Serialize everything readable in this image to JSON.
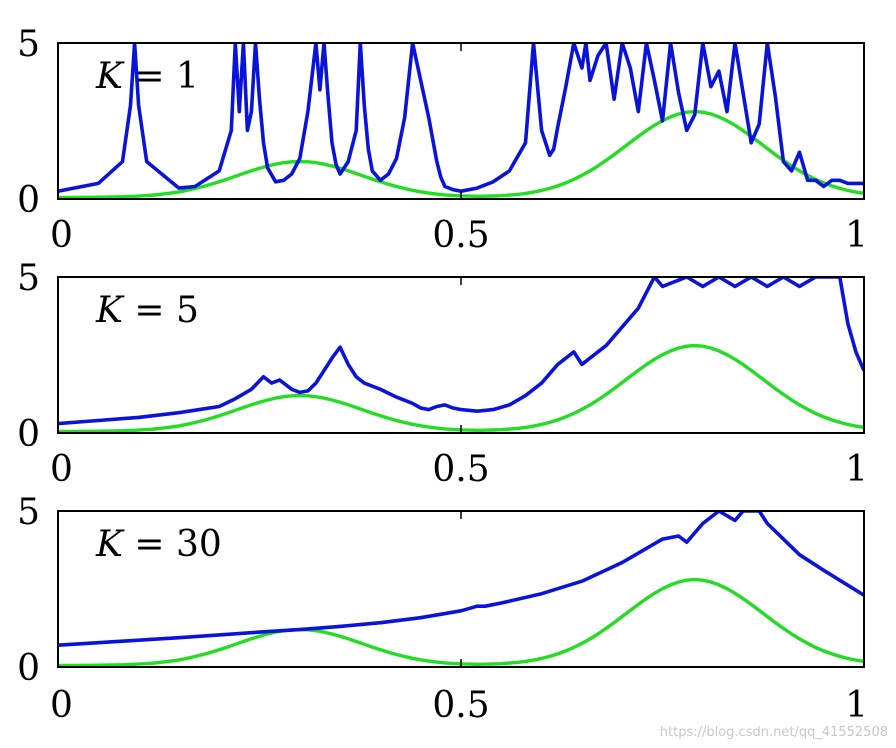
{
  "watermark": "https://blog.csdn.net/qq_41552508",
  "colors": {
    "estimate": "#0a14d8",
    "true_psd": "#22dd22",
    "axes": "#000000"
  },
  "chart_data": [
    {
      "type": "line",
      "label_var": "K",
      "label_rest": " = 1",
      "xlim": [
        0,
        1
      ],
      "ylim": [
        0,
        5
      ],
      "xticks": [
        "0",
        "0.5",
        "1"
      ],
      "yticks": [
        "0",
        "5"
      ],
      "grid": false,
      "series": [
        {
          "key": "estimate",
          "x": [
            0,
            0.05,
            0.08,
            0.09,
            0.095,
            0.1,
            0.11,
            0.15,
            0.17,
            0.2,
            0.215,
            0.22,
            0.225,
            0.23,
            0.235,
            0.24,
            0.245,
            0.25,
            0.255,
            0.26,
            0.27,
            0.28,
            0.29,
            0.3,
            0.31,
            0.32,
            0.325,
            0.33,
            0.335,
            0.34,
            0.345,
            0.35,
            0.36,
            0.37,
            0.375,
            0.38,
            0.385,
            0.39,
            0.4,
            0.41,
            0.42,
            0.43,
            0.44,
            0.46,
            0.47,
            0.475,
            0.48,
            0.49,
            0.5,
            0.52,
            0.54,
            0.56,
            0.58,
            0.59,
            0.6,
            0.61,
            0.615,
            0.62,
            0.63,
            0.64,
            0.65,
            0.655,
            0.66,
            0.67,
            0.68,
            0.69,
            0.7,
            0.71,
            0.72,
            0.73,
            0.74,
            0.75,
            0.76,
            0.77,
            0.78,
            0.79,
            0.8,
            0.81,
            0.82,
            0.83,
            0.84,
            0.85,
            0.86,
            0.87,
            0.88,
            0.89,
            0.9,
            0.91,
            0.92,
            0.93,
            0.94,
            0.95,
            0.96,
            0.97,
            0.98,
            0.99,
            1.0
          ],
          "y": [
            0.25,
            0.5,
            1.2,
            3,
            5,
            3,
            1.2,
            0.35,
            0.4,
            0.9,
            2.2,
            5,
            2.8,
            5,
            2.2,
            2.8,
            5,
            3.2,
            1.8,
            1,
            0.55,
            0.6,
            0.8,
            1.3,
            2.8,
            5,
            3.5,
            5,
            3.3,
            1.8,
            1.1,
            0.8,
            1.2,
            2.2,
            5,
            3,
            1.6,
            0.9,
            0.6,
            0.8,
            1.3,
            2.6,
            5,
            2.6,
            1.2,
            0.7,
            0.4,
            0.3,
            0.25,
            0.35,
            0.55,
            0.9,
            1.8,
            5,
            2.2,
            1.4,
            1.6,
            2.3,
            3.6,
            5,
            4.2,
            5,
            3.8,
            4.6,
            5,
            3.2,
            5,
            4.2,
            2.8,
            5,
            3.8,
            2.5,
            5,
            3.4,
            2.2,
            2.7,
            5,
            3.6,
            4.1,
            2.8,
            5,
            3.4,
            1.8,
            2.4,
            5,
            3.3,
            1.2,
            0.9,
            1.5,
            0.6,
            0.6,
            0.4,
            0.6,
            0.6,
            0.5,
            0.5,
            0.5
          ]
        },
        {
          "key": "true_psd",
          "x": [],
          "y": []
        }
      ]
    },
    {
      "type": "line",
      "label_var": "K",
      "label_rest": " = 5",
      "xlim": [
        0,
        1
      ],
      "ylim": [
        0,
        5
      ],
      "xticks": [
        "0",
        "0.5",
        "1"
      ],
      "yticks": [
        "0",
        "5"
      ],
      "grid": false,
      "series": [
        {
          "key": "estimate",
          "x": [
            0,
            0.05,
            0.1,
            0.15,
            0.2,
            0.22,
            0.24,
            0.255,
            0.265,
            0.275,
            0.285,
            0.29,
            0.3,
            0.31,
            0.32,
            0.33,
            0.34,
            0.35,
            0.36,
            0.37,
            0.38,
            0.4,
            0.42,
            0.44,
            0.45,
            0.46,
            0.47,
            0.48,
            0.49,
            0.5,
            0.52,
            0.54,
            0.56,
            0.58,
            0.6,
            0.62,
            0.64,
            0.65,
            0.66,
            0.68,
            0.7,
            0.72,
            0.74,
            0.75,
            0.78,
            0.8,
            0.82,
            0.84,
            0.86,
            0.88,
            0.9,
            0.92,
            0.94,
            0.96,
            0.97,
            0.98,
            0.99,
            1.0
          ],
          "y": [
            0.3,
            0.4,
            0.5,
            0.65,
            0.85,
            1.1,
            1.4,
            1.8,
            1.6,
            1.7,
            1.5,
            1.4,
            1.3,
            1.35,
            1.6,
            2.0,
            2.4,
            2.75,
            2.2,
            1.8,
            1.6,
            1.4,
            1.15,
            0.95,
            0.8,
            0.75,
            0.85,
            0.9,
            0.8,
            0.75,
            0.7,
            0.75,
            0.9,
            1.2,
            1.6,
            2.2,
            2.6,
            2.2,
            2.4,
            2.8,
            3.4,
            4.0,
            5,
            4.7,
            5,
            4.7,
            5,
            4.7,
            5,
            4.7,
            5,
            4.7,
            5,
            5,
            5,
            3.5,
            2.6,
            2.0
          ]
        },
        {
          "key": "true_psd",
          "x": [],
          "y": []
        }
      ]
    },
    {
      "type": "line",
      "label_var": "K",
      "label_rest": " = 30",
      "xlim": [
        0,
        1
      ],
      "ylim": [
        0,
        5
      ],
      "xticks": [
        "0",
        "0.5",
        "1"
      ],
      "yticks": [
        "0",
        "5"
      ],
      "grid": false,
      "series": [
        {
          "key": "estimate",
          "x": [
            0,
            0.05,
            0.1,
            0.15,
            0.2,
            0.25,
            0.3,
            0.35,
            0.4,
            0.45,
            0.5,
            0.52,
            0.53,
            0.55,
            0.6,
            0.65,
            0.7,
            0.75,
            0.77,
            0.78,
            0.8,
            0.82,
            0.84,
            0.85,
            0.86,
            0.87,
            0.88,
            0.9,
            0.92,
            0.95,
            1.0
          ],
          "y": [
            0.7,
            0.78,
            0.86,
            0.94,
            1.03,
            1.12,
            1.2,
            1.3,
            1.42,
            1.58,
            1.8,
            1.95,
            1.95,
            2.05,
            2.35,
            2.75,
            3.35,
            4.1,
            4.2,
            4.0,
            4.6,
            5,
            4.7,
            5,
            5,
            5,
            4.6,
            4.1,
            3.6,
            3.1,
            2.3
          ]
        },
        {
          "key": "true_psd",
          "x": [],
          "y": []
        }
      ]
    }
  ]
}
